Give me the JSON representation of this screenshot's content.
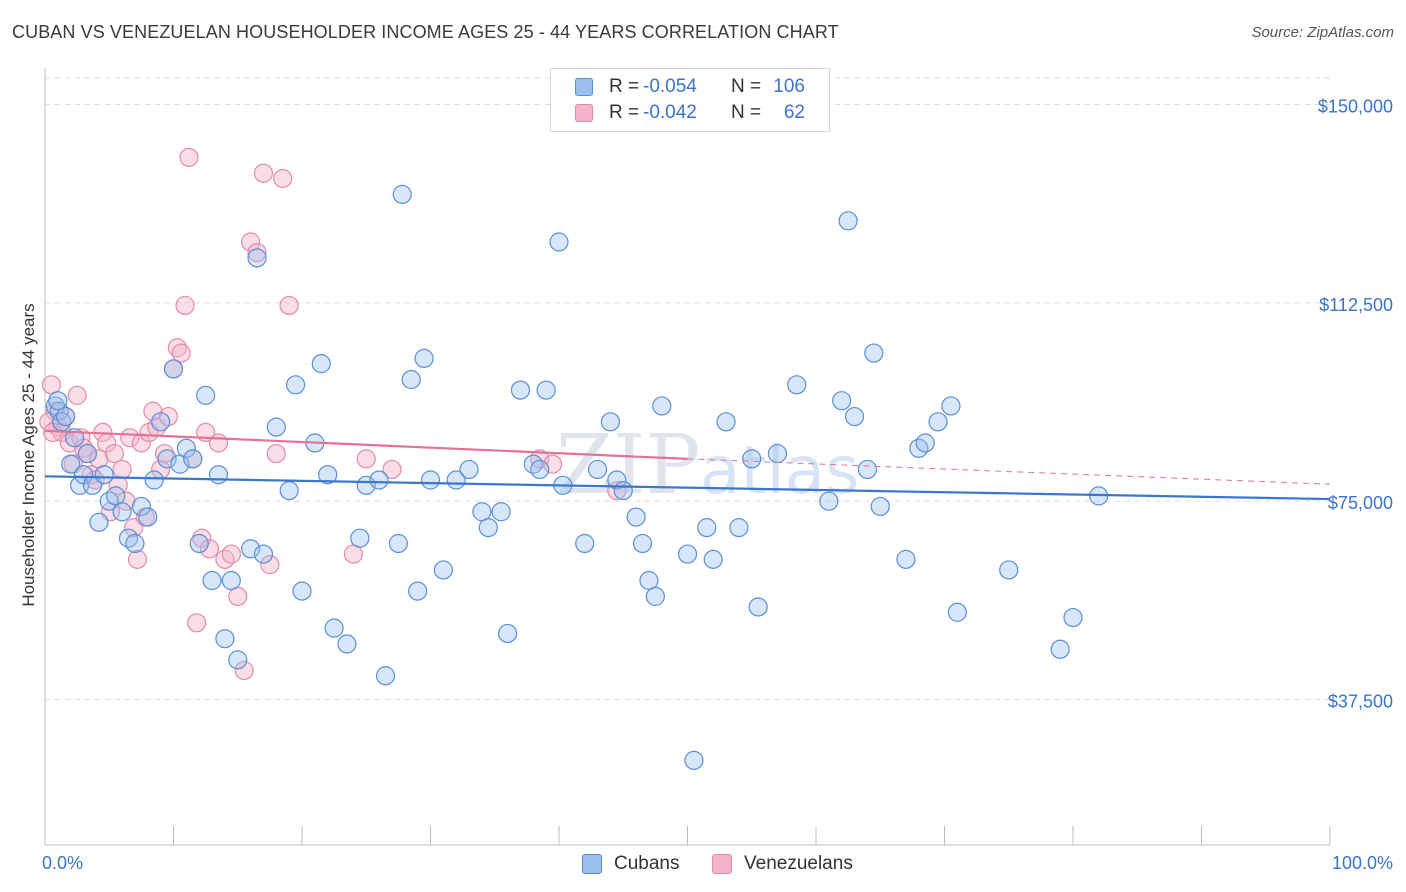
{
  "title": "CUBAN VS VENEZUELAN HOUSEHOLDER INCOME AGES 25 - 44 YEARS CORRELATION CHART",
  "source": "Source: ZipAtlas.com",
  "watermark": {
    "zip": "ZIP",
    "atlas": "atlas"
  },
  "legend": {
    "rows": [
      {
        "r_label": "R =",
        "r_value": "-0.054",
        "n_label": "N =",
        "n_value": "106",
        "color": "#9cc0ee"
      },
      {
        "r_label": "R =",
        "r_value": "-0.042",
        "n_label": "N =",
        "n_value": "62",
        "color": "#f5b3c9"
      }
    ]
  },
  "bottom_legend": {
    "cubans": "Cubans",
    "venezuelans": "Venezuelans"
  },
  "colors": {
    "cuban_fill": "#9cc0ee",
    "cuban_stroke": "#5a8fd6",
    "cuban_line": "#3a78d0",
    "venezuelan_fill": "#f5b3c9",
    "venezuelan_stroke": "#e38aab",
    "venezuelan_line": "#e3719a",
    "tick_text": "#3b73c9",
    "grid": "#dddddd"
  },
  "chart_data": {
    "type": "scatter",
    "title": "CUBAN VS VENEZUELAN HOUSEHOLDER INCOME AGES 25 - 44 YEARS CORRELATION CHART",
    "xlabel": "",
    "ylabel": "Householder Income Ages 25 - 44 years",
    "xlim": [
      0,
      100
    ],
    "ylim": [
      10000,
      155000
    ],
    "x_tick_labels": [
      "0.0%",
      "100.0%"
    ],
    "y_ticks": [
      37500,
      75000,
      112500,
      150000
    ],
    "y_tick_labels": [
      "$37,500",
      "$75,000",
      "$112,500",
      "$150,000"
    ],
    "grid": true,
    "legend_position": "top-center",
    "series": [
      {
        "name": "Cubans",
        "r": -0.054,
        "n": 106,
        "trend": {
          "x": [
            0,
            100
          ],
          "y": [
            79700,
            75400
          ]
        },
        "points": [
          [
            0.8,
            93000
          ],
          [
            1.1,
            92000
          ],
          [
            1.3,
            90000
          ],
          [
            1.6,
            91000
          ],
          [
            2.0,
            82000
          ],
          [
            2.3,
            87000
          ],
          [
            2.7,
            78000
          ],
          [
            3.0,
            80000
          ],
          [
            3.3,
            84000
          ],
          [
            3.7,
            78000
          ],
          [
            4.2,
            71000
          ],
          [
            4.6,
            80000
          ],
          [
            5.0,
            75000
          ],
          [
            5.5,
            76000
          ],
          [
            6.0,
            73000
          ],
          [
            6.5,
            68000
          ],
          [
            7.0,
            67000
          ],
          [
            7.5,
            74000
          ],
          [
            8.0,
            72000
          ],
          [
            8.5,
            79000
          ],
          [
            9.0,
            90000
          ],
          [
            9.5,
            83000
          ],
          [
            10.0,
            100000
          ],
          [
            10.5,
            82000
          ],
          [
            11.0,
            85000
          ],
          [
            11.5,
            83000
          ],
          [
            12.0,
            67000
          ],
          [
            12.5,
            95000
          ],
          [
            13.0,
            60000
          ],
          [
            13.5,
            80000
          ],
          [
            14.0,
            49000
          ],
          [
            14.5,
            60000
          ],
          [
            15.0,
            45000
          ],
          [
            16.0,
            66000
          ],
          [
            16.5,
            121000
          ],
          [
            17.0,
            65000
          ],
          [
            18.0,
            89000
          ],
          [
            19.0,
            77000
          ],
          [
            19.5,
            97000
          ],
          [
            20.0,
            58000
          ],
          [
            21.0,
            86000
          ],
          [
            21.5,
            101000
          ],
          [
            22.0,
            80000
          ],
          [
            22.5,
            51000
          ],
          [
            23.5,
            48000
          ],
          [
            24.5,
            68000
          ],
          [
            25.0,
            78000
          ],
          [
            26.0,
            79000
          ],
          [
            26.5,
            42000
          ],
          [
            27.5,
            67000
          ],
          [
            27.8,
            133000
          ],
          [
            28.5,
            98000
          ],
          [
            29.0,
            58000
          ],
          [
            29.5,
            102000
          ],
          [
            30.0,
            79000
          ],
          [
            31.0,
            62000
          ],
          [
            32.0,
            79000
          ],
          [
            33.0,
            81000
          ],
          [
            34.0,
            73000
          ],
          [
            34.5,
            70000
          ],
          [
            35.5,
            73000
          ],
          [
            36.0,
            50000
          ],
          [
            37.0,
            96000
          ],
          [
            38.0,
            82000
          ],
          [
            38.5,
            81000
          ],
          [
            39.0,
            96000
          ],
          [
            40.0,
            124000
          ],
          [
            40.3,
            78000
          ],
          [
            42.0,
            67000
          ],
          [
            43.0,
            81000
          ],
          [
            44.0,
            90000
          ],
          [
            44.5,
            79000
          ],
          [
            45.0,
            77000
          ],
          [
            46.0,
            72000
          ],
          [
            46.5,
            67000
          ],
          [
            47.0,
            60000
          ],
          [
            47.5,
            57000
          ],
          [
            48.0,
            93000
          ],
          [
            50.0,
            65000
          ],
          [
            50.5,
            26000
          ],
          [
            51.5,
            70000
          ],
          [
            52.0,
            64000
          ],
          [
            53.0,
            90000
          ],
          [
            54.0,
            70000
          ],
          [
            55.0,
            83000
          ],
          [
            55.5,
            55000
          ],
          [
            57.0,
            84000
          ],
          [
            58.5,
            97000
          ],
          [
            61.0,
            75000
          ],
          [
            62.0,
            94000
          ],
          [
            62.5,
            128000
          ],
          [
            63.0,
            91000
          ],
          [
            64.0,
            81000
          ],
          [
            64.5,
            103000
          ],
          [
            65.0,
            74000
          ],
          [
            67.0,
            64000
          ],
          [
            68.0,
            85000
          ],
          [
            68.5,
            86000
          ],
          [
            69.5,
            90000
          ],
          [
            70.5,
            93000
          ],
          [
            71.0,
            54000
          ],
          [
            75.0,
            62000
          ],
          [
            79.0,
            47000
          ],
          [
            80.0,
            53000
          ],
          [
            82.0,
            76000
          ],
          [
            1.0,
            94000
          ]
        ]
      },
      {
        "name": "Venezuelans",
        "r": -0.042,
        "n": 62,
        "trend": {
          "x": [
            0,
            50
          ],
          "y": [
            88300,
            83000
          ]
        },
        "trend_extension": {
          "x": [
            50,
            100
          ],
          "y": [
            83000,
            78200
          ]
        },
        "points": [
          [
            0.5,
            97000
          ],
          [
            0.8,
            92000
          ],
          [
            1.0,
            89000
          ],
          [
            1.3,
            88000
          ],
          [
            1.6,
            91000
          ],
          [
            1.9,
            86000
          ],
          [
            2.2,
            82000
          ],
          [
            2.5,
            95000
          ],
          [
            2.8,
            87000
          ],
          [
            3.0,
            85000
          ],
          [
            3.3,
            84000
          ],
          [
            3.6,
            80000
          ],
          [
            3.9,
            79000
          ],
          [
            4.2,
            83000
          ],
          [
            4.5,
            88000
          ],
          [
            4.8,
            86000
          ],
          [
            5.1,
            73000
          ],
          [
            5.4,
            84000
          ],
          [
            5.7,
            78000
          ],
          [
            6.0,
            81000
          ],
          [
            6.3,
            75000
          ],
          [
            6.6,
            87000
          ],
          [
            6.9,
            70000
          ],
          [
            7.2,
            64000
          ],
          [
            7.5,
            86000
          ],
          [
            7.8,
            72000
          ],
          [
            8.1,
            88000
          ],
          [
            8.4,
            92000
          ],
          [
            8.7,
            89000
          ],
          [
            9.0,
            81000
          ],
          [
            9.3,
            84000
          ],
          [
            9.6,
            91000
          ],
          [
            10.0,
            100000
          ],
          [
            10.3,
            104000
          ],
          [
            10.6,
            103000
          ],
          [
            10.9,
            112000
          ],
          [
            11.2,
            140000
          ],
          [
            11.5,
            83000
          ],
          [
            11.8,
            52000
          ],
          [
            12.2,
            68000
          ],
          [
            12.5,
            88000
          ],
          [
            12.8,
            66000
          ],
          [
            13.5,
            86000
          ],
          [
            14.0,
            64000
          ],
          [
            14.5,
            65000
          ],
          [
            15.0,
            57000
          ],
          [
            15.5,
            43000
          ],
          [
            16.0,
            124000
          ],
          [
            16.5,
            122000
          ],
          [
            17.0,
            137000
          ],
          [
            17.5,
            63000
          ],
          [
            18.0,
            84000
          ],
          [
            18.5,
            136000
          ],
          [
            19.0,
            112000
          ],
          [
            24.0,
            65000
          ],
          [
            25.0,
            83000
          ],
          [
            27.0,
            81000
          ],
          [
            38.5,
            83000
          ],
          [
            39.5,
            82000
          ],
          [
            44.5,
            77000
          ],
          [
            0.3,
            90000
          ],
          [
            0.6,
            88000
          ]
        ]
      }
    ]
  }
}
